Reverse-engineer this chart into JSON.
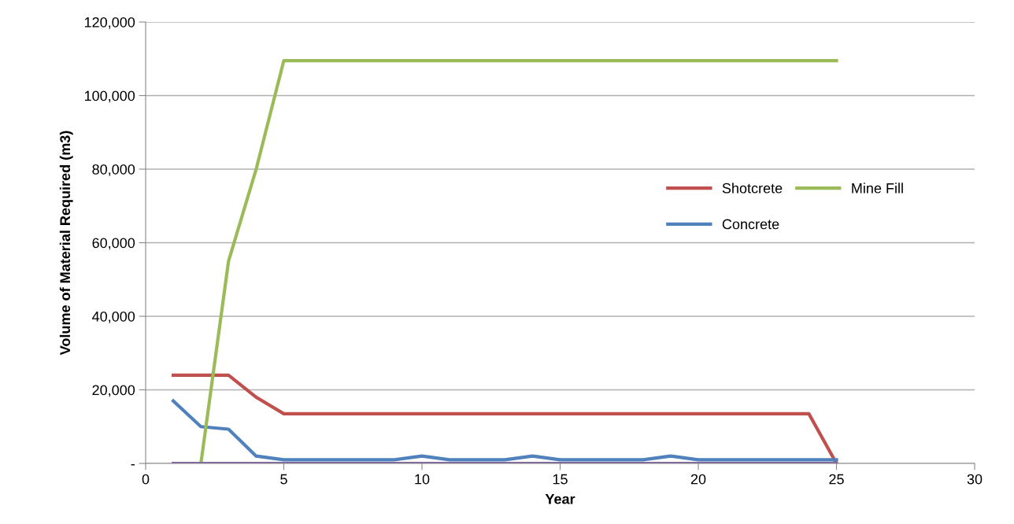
{
  "chart_data": {
    "type": "line",
    "xlabel": "Year",
    "ylabel": "Volume of Material Required (m3)",
    "x": [
      1,
      2,
      3,
      4,
      5,
      6,
      7,
      8,
      9,
      10,
      11,
      12,
      13,
      14,
      15,
      16,
      17,
      18,
      19,
      20,
      21,
      22,
      23,
      24,
      25
    ],
    "series": [
      {
        "name": "Shotcrete",
        "color": "#c0504d",
        "values": [
          24000,
          24000,
          24000,
          18000,
          13500,
          13500,
          13500,
          13500,
          13500,
          13500,
          13500,
          13500,
          13500,
          13500,
          13500,
          13500,
          13500,
          13500,
          13500,
          13500,
          13500,
          13500,
          13500,
          13500,
          0
        ]
      },
      {
        "name": "Concrete",
        "color": "#4f81bd",
        "values": [
          17000,
          10000,
          9300,
          2000,
          1000,
          1000,
          1000,
          1000,
          1000,
          2000,
          1000,
          1000,
          1000,
          2000,
          1000,
          1000,
          1000,
          1000,
          2000,
          1000,
          1000,
          1000,
          1000,
          1000,
          1000
        ]
      },
      {
        "name": "Mine Fill",
        "color": "#9bbb59",
        "values": [
          null,
          0,
          55000,
          80000,
          109500,
          109500,
          109500,
          109500,
          109500,
          109500,
          109500,
          109500,
          109500,
          109500,
          109500,
          109500,
          109500,
          109500,
          109500,
          109500,
          109500,
          109500,
          109500,
          109500,
          109500
        ]
      },
      {
        "color": "#8064a2",
        "values": [
          0,
          0,
          0,
          0,
          0,
          0,
          0,
          0,
          0,
          0,
          0,
          0,
          0,
          0,
          0,
          0,
          0,
          0,
          0,
          0,
          0,
          0,
          0,
          0,
          0
        ]
      }
    ],
    "xlim": [
      0,
      30
    ],
    "xticks": [
      0,
      5,
      10,
      15,
      20,
      25,
      30
    ],
    "ylim": [
      0,
      120000
    ],
    "yticks": [
      {
        "value": 0,
        "label": "-"
      },
      {
        "value": 20000,
        "label": "20,000"
      },
      {
        "value": 40000,
        "label": "40,000"
      },
      {
        "value": 60000,
        "label": "60,000"
      },
      {
        "value": 80000,
        "label": "80,000"
      },
      {
        "value": 100000,
        "label": "100,000"
      },
      {
        "value": 120000,
        "label": "120,000"
      }
    ],
    "grid": "y",
    "legend": "right",
    "marker": "none",
    "line_style": "solid"
  }
}
